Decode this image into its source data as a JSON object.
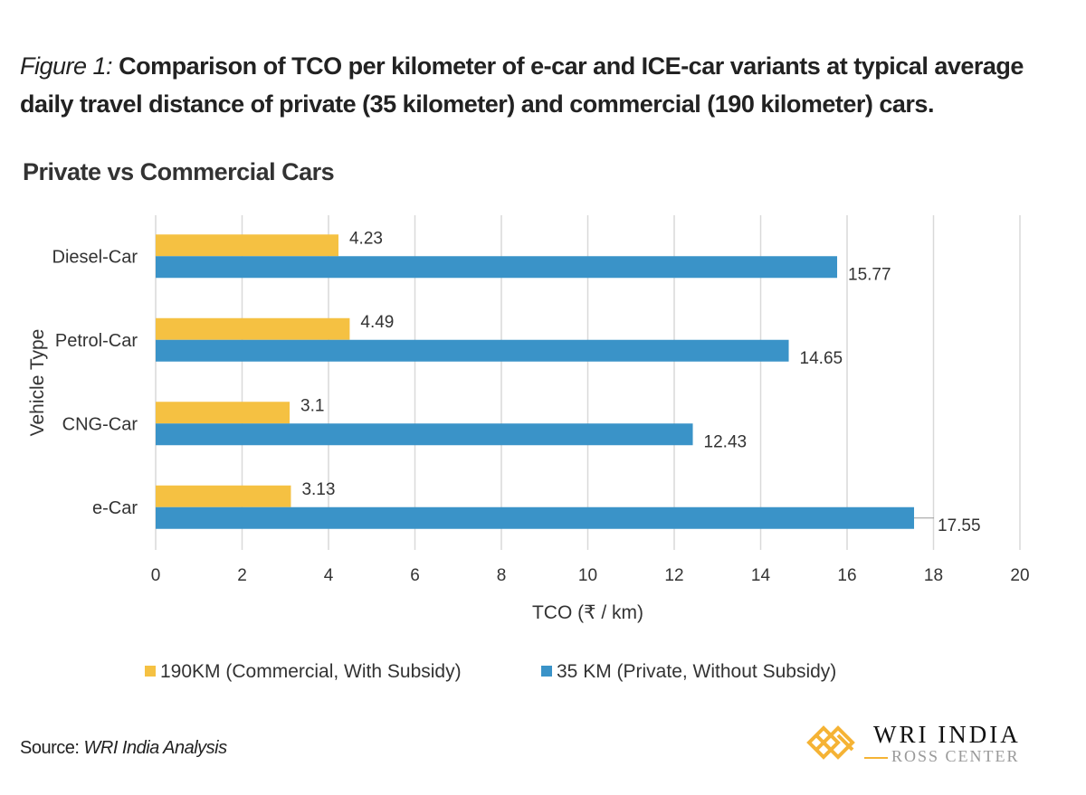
{
  "figure_label": "Figure 1:",
  "figure_caption": "Comparison of TCO per kilometer of e-car and ICE-car variants at typical average daily travel distance of private (35 kilometer) and commercial (190 kilometer) cars.",
  "source_label": "Source:",
  "source_text": "WRI India Analysis",
  "logo": {
    "line1": "WRI INDIA",
    "line2": "ROSS CENTER"
  },
  "chart_data": {
    "type": "bar",
    "orientation": "horizontal",
    "title": "Private vs Commercial Cars",
    "xlabel": "TCO (₹ / km)",
    "ylabel": "Vehicle Type",
    "categories": [
      "Diesel-Car",
      "Petrol-Car",
      "CNG-Car",
      "e-Car"
    ],
    "series": [
      {
        "name": "190KM (Commercial, With Subsidy)",
        "values": [
          4.23,
          4.49,
          3.1,
          3.13
        ],
        "color": "#F5C142"
      },
      {
        "name": "35 KM (Private, Without Subsidy)",
        "values": [
          15.77,
          14.65,
          12.43,
          17.55
        ],
        "color": "#3A93C8"
      }
    ],
    "xlim": [
      0,
      20
    ],
    "xticks": [
      0,
      2,
      4,
      6,
      8,
      10,
      12,
      14,
      16,
      18,
      20
    ],
    "grid": true,
    "legend_position": "bottom"
  }
}
